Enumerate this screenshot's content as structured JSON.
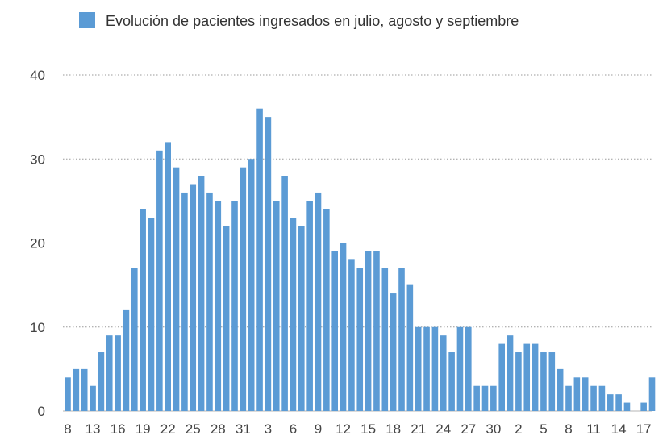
{
  "chart_data": {
    "type": "bar",
    "legend": {
      "label": "Evolución de pacientes ingresados en julio, agosto y septiembre",
      "position": "top"
    },
    "series": [
      {
        "name": "Evolución de pacientes ingresados en julio, agosto y septiembre",
        "color": "#5b9bd5",
        "values": [
          4,
          5,
          5,
          3,
          7,
          9,
          9,
          12,
          17,
          24,
          23,
          31,
          32,
          29,
          26,
          27,
          28,
          26,
          25,
          22,
          25,
          29,
          30,
          36,
          35,
          25,
          28,
          23,
          22,
          25,
          26,
          24,
          19,
          20,
          18,
          17,
          19,
          19,
          17,
          14,
          17,
          15,
          10,
          10,
          10,
          9,
          7,
          10,
          10,
          3,
          3,
          3,
          8,
          9,
          7,
          8,
          8,
          7,
          7,
          5,
          3,
          4,
          4,
          3,
          3,
          2,
          2,
          1,
          0,
          1,
          4
        ]
      }
    ],
    "categories": [
      "8",
      "",
      "",
      "13",
      "",
      "",
      "16",
      "",
      "",
      "19",
      "",
      "",
      "22",
      "",
      "",
      "25",
      "",
      "",
      "28",
      "",
      "",
      "31",
      "",
      "",
      "3",
      "",
      "",
      "6",
      "",
      "",
      "9",
      "",
      "",
      "12",
      "",
      "",
      "15",
      "",
      "",
      "18",
      "",
      "",
      "21",
      "",
      "",
      "24",
      "",
      "",
      "27",
      "",
      "",
      "30",
      "",
      "",
      "2",
      "",
      "",
      "5",
      "",
      "",
      "8",
      "",
      "",
      "11",
      "",
      "",
      "14",
      "",
      "",
      "17",
      ""
    ],
    "ylim": [
      0,
      40
    ],
    "yticks": [
      0,
      10,
      20,
      30,
      40
    ],
    "grid": true
  }
}
